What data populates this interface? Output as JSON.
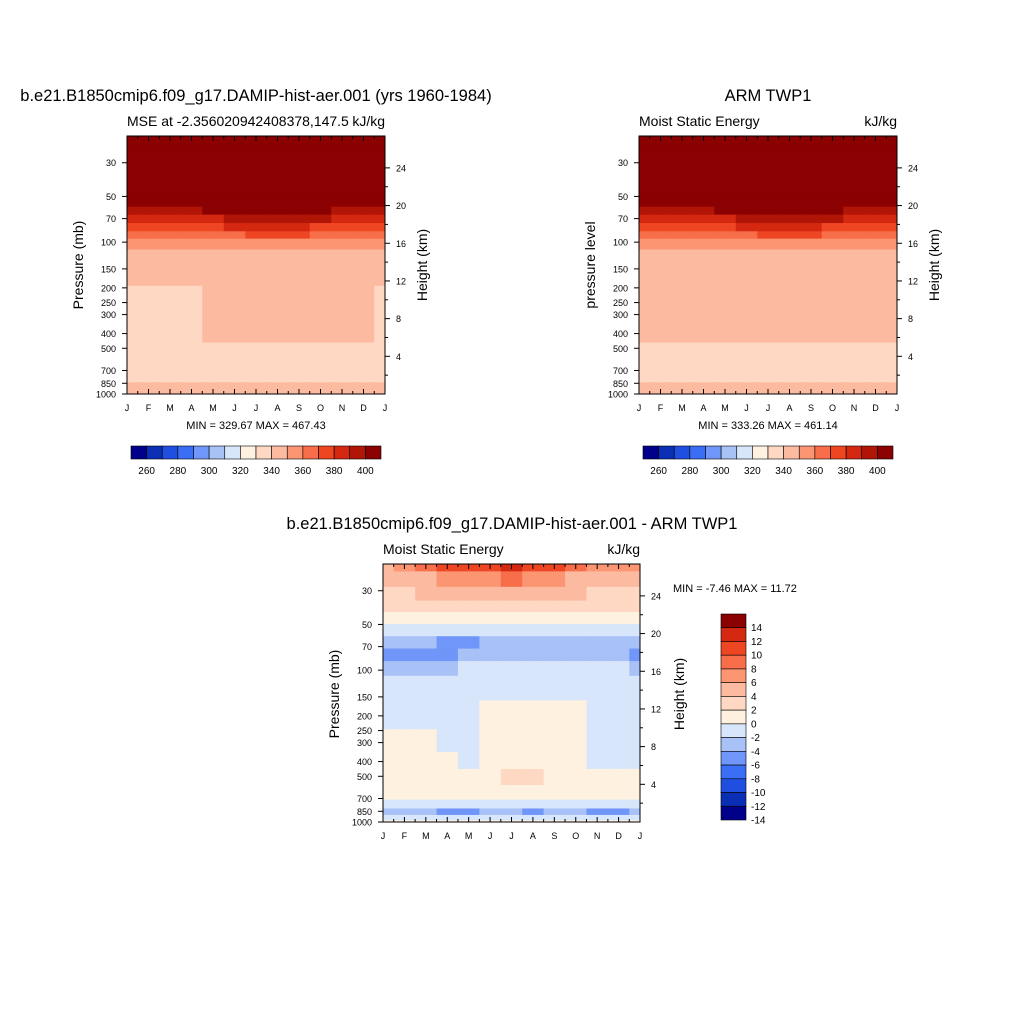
{
  "colors": {
    "abs_palette": [
      "#00008b",
      "#0a2fb4",
      "#1f4fe0",
      "#3a6ef5",
      "#6f96f8",
      "#a8c1f6",
      "#d7e6fa",
      "#fff1e0",
      "#fed8c2",
      "#fcbaa0",
      "#fb9572",
      "#f86e4a",
      "#ee4623",
      "#d42811",
      "#b11507",
      "#8b0000"
    ],
    "diff_palette": [
      "#00008b",
      "#0a2fb4",
      "#1f4fe0",
      "#3a6ef5",
      "#6f96f8",
      "#a8c1f6",
      "#d7e6fa",
      "#fff1e0",
      "#fed8c2",
      "#fcbaa0",
      "#fb9572",
      "#f86e4a",
      "#ee4623",
      "#d42811",
      "#8b0000"
    ]
  },
  "panels": {
    "model": {
      "main_title": "b.e21.B1850cmip6.f09_g17.DAMIP-hist-aer.001 (yrs 1960-1984)",
      "left_title": "MSE at -2.356020942408378,147.5",
      "right_title": "kJ/kg",
      "ylabel": "Pressure (mb)",
      "ylabel_right": "Height (km)",
      "minmax": "MIN = 329.67 MAX = 467.43"
    },
    "obs": {
      "main_title": "ARM TWP1",
      "left_title": "Moist Static Energy",
      "right_title": "kJ/kg",
      "ylabel": "pressure level",
      "ylabel_right": "Height (km)",
      "minmax": "MIN = 333.26 MAX = 461.14"
    },
    "diff": {
      "main_title": "b.e21.B1850cmip6.f09_g17.DAMIP-hist-aer.001 - ARM TWP1",
      "left_title": "Moist Static Energy",
      "right_title": "kJ/kg",
      "ylabel": "Pressure (mb)",
      "ylabel_right": "Height (km)",
      "minmax": "MIN =  -7.46 MAX =  11.72"
    }
  },
  "chart_data": [
    {
      "type": "heatmap",
      "title": "b.e21.B1850cmip6.f09_g17.DAMIP-hist-aer.001 (yrs 1960-1984)",
      "x_tick_labels": [
        "J",
        "F",
        "M",
        "A",
        "M",
        "J",
        "J",
        "A",
        "S",
        "O",
        "N",
        "D",
        "J"
      ],
      "pressure_ticks": [
        30,
        50,
        70,
        100,
        150,
        200,
        250,
        300,
        400,
        500,
        700,
        850,
        1000
      ],
      "height_ticks": [
        4,
        8,
        12,
        16,
        20,
        24
      ],
      "ylim": [
        1000,
        20
      ],
      "y_scale": "log",
      "pressure_levels": [
        20,
        30,
        45,
        55,
        62,
        70,
        80,
        90,
        100,
        125,
        300,
        700,
        1000
      ],
      "values": [
        [
          420,
          420,
          420,
          420,
          420,
          420,
          420,
          420,
          420,
          420,
          420,
          420,
          420
        ],
        [
          420,
          420,
          420,
          420,
          420,
          420,
          420,
          420,
          420,
          420,
          420,
          420,
          420
        ],
        [
          420,
          420,
          420,
          420,
          420,
          420,
          420,
          420,
          420,
          420,
          420,
          420,
          420
        ],
        [
          405,
          405,
          405,
          406,
          408,
          410,
          412,
          412,
          411,
          409,
          406,
          405,
          405
        ],
        [
          398,
          398,
          398,
          399,
          401,
          403,
          405,
          405,
          404,
          402,
          399,
          398,
          398
        ],
        [
          386,
          386,
          386,
          387,
          389,
          391,
          393,
          393,
          392,
          390,
          387,
          386,
          386
        ],
        [
          375,
          375,
          375,
          376,
          378,
          380,
          382,
          382,
          381,
          379,
          376,
          375,
          375
        ],
        [
          364,
          364,
          364,
          365,
          367,
          369,
          371,
          371,
          370,
          368,
          365,
          364,
          364
        ],
        [
          355,
          355,
          355,
          355,
          356,
          357,
          358,
          358,
          358,
          357,
          355,
          355,
          355
        ],
        [
          345,
          345,
          345,
          345,
          345,
          345,
          345,
          345,
          345,
          345,
          345,
          345,
          345
        ],
        [
          339,
          339,
          339,
          339,
          341,
          341,
          341,
          341,
          341,
          341,
          341,
          340,
          339
        ],
        [
          338,
          338,
          338,
          338,
          338,
          338,
          338,
          338,
          338,
          338,
          338,
          338,
          338
        ],
        [
          342,
          342,
          342,
          342,
          342,
          342,
          342,
          342,
          342,
          342,
          342,
          342,
          342
        ]
      ],
      "levels": [
        260,
        270,
        280,
        290,
        300,
        310,
        320,
        330,
        340,
        350,
        360,
        370,
        380,
        390,
        400
      ],
      "colorbar_labels": [
        "260",
        "280",
        "300",
        "320",
        "340",
        "360",
        "380",
        "400"
      ],
      "annotation": "MIN = 329.67 MAX = 467.43"
    },
    {
      "type": "heatmap",
      "title": "ARM TWP1",
      "x_tick_labels": [
        "J",
        "F",
        "M",
        "A",
        "M",
        "J",
        "J",
        "A",
        "S",
        "O",
        "N",
        "D",
        "J"
      ],
      "pressure_ticks": [
        30,
        50,
        70,
        100,
        150,
        200,
        250,
        300,
        400,
        500,
        700,
        850,
        1000
      ],
      "height_ticks": [
        4,
        8,
        12,
        16,
        20,
        24
      ],
      "ylim": [
        1000,
        20
      ],
      "y_scale": "log",
      "pressure_levels": [
        20,
        30,
        45,
        55,
        62,
        70,
        80,
        90,
        100,
        125,
        300,
        700,
        1000
      ],
      "values": [
        [
          420,
          420,
          420,
          420,
          420,
          420,
          420,
          420,
          420,
          420,
          420,
          420,
          420
        ],
        [
          420,
          420,
          420,
          420,
          420,
          420,
          420,
          420,
          420,
          420,
          420,
          420,
          420
        ],
        [
          420,
          420,
          420,
          420,
          420,
          420,
          420,
          420,
          420,
          420,
          420,
          420,
          420
        ],
        [
          405,
          405,
          405,
          406,
          408,
          410,
          412,
          412,
          411,
          409,
          406,
          405,
          405
        ],
        [
          398,
          398,
          398,
          399,
          401,
          403,
          405,
          405,
          404,
          402,
          399,
          398,
          398
        ],
        [
          386,
          386,
          386,
          387,
          389,
          391,
          393,
          393,
          392,
          390,
          387,
          386,
          386
        ],
        [
          375,
          375,
          375,
          376,
          378,
          380,
          382,
          382,
          381,
          379,
          376,
          375,
          375
        ],
        [
          364,
          364,
          364,
          365,
          367,
          369,
          371,
          371,
          370,
          368,
          365,
          364,
          364
        ],
        [
          355,
          355,
          355,
          355,
          356,
          357,
          358,
          358,
          358,
          357,
          355,
          355,
          355
        ],
        [
          345,
          345,
          345,
          345,
          345,
          345,
          345,
          345,
          345,
          345,
          345,
          345,
          345
        ],
        [
          345,
          345,
          345,
          345,
          343,
          343,
          342,
          341,
          342,
          343,
          344,
          345,
          345
        ],
        [
          338,
          338,
          338,
          338,
          338,
          338,
          338,
          338,
          338,
          338,
          338,
          338,
          338
        ],
        [
          345,
          345,
          342,
          342,
          345,
          342,
          342,
          342,
          342,
          342,
          345,
          345,
          345
        ]
      ],
      "levels": [
        260,
        270,
        280,
        290,
        300,
        310,
        320,
        330,
        340,
        350,
        360,
        370,
        380,
        390,
        400
      ],
      "colorbar_labels": [
        "260",
        "280",
        "300",
        "320",
        "340",
        "360",
        "380",
        "400"
      ],
      "annotation": "MIN = 333.26 MAX = 461.14"
    },
    {
      "type": "heatmap",
      "title": "b.e21.B1850cmip6.f09_g17.DAMIP-hist-aer.001 - ARM TWP1",
      "x_tick_labels": [
        "J",
        "F",
        "M",
        "A",
        "M",
        "J",
        "J",
        "A",
        "S",
        "O",
        "N",
        "D",
        "J"
      ],
      "pressure_ticks": [
        30,
        50,
        70,
        100,
        150,
        200,
        250,
        300,
        400,
        500,
        700,
        850,
        1000
      ],
      "height_ticks": [
        4,
        8,
        12,
        16,
        20,
        24
      ],
      "ylim": [
        1000,
        20
      ],
      "y_scale": "log",
      "pressure_levels": [
        20,
        25,
        32,
        38,
        45,
        55,
        65,
        80,
        95,
        125,
        200,
        300,
        400,
        500,
        650,
        780,
        850,
        950,
        1000
      ],
      "values": [
        [
          3,
          5,
          7,
          9,
          9,
          9,
          11,
          9,
          9,
          7,
          5,
          5,
          4
        ],
        [
          2,
          2,
          3,
          5,
          5,
          5,
          7,
          5,
          5,
          3,
          2,
          2,
          2
        ],
        [
          1,
          1,
          2,
          3,
          3,
          3,
          3,
          3,
          3,
          2,
          1,
          1,
          1
        ],
        [
          0.5,
          0.5,
          0.5,
          1,
          1,
          1,
          1,
          1,
          1,
          1,
          0.5,
          0.5,
          0.5
        ],
        [
          -1,
          -1,
          -1,
          -1,
          -1,
          -1,
          -1,
          -1,
          -1,
          -1,
          -1,
          -1,
          -1
        ],
        [
          -3,
          -3,
          -3,
          -3,
          -3,
          -3,
          -3,
          -3,
          -3,
          -3,
          -3,
          -3,
          -3
        ],
        [
          -5,
          -5,
          -5,
          -7,
          -7,
          -5,
          -5,
          -5,
          -5,
          -5,
          -5,
          -5,
          -5
        ],
        [
          -7,
          -7,
          -7,
          -7,
          -6,
          -5,
          -5,
          -5,
          -5,
          -5,
          -5,
          -5,
          -7
        ],
        [
          -5,
          -5,
          -5,
          -5,
          -4,
          -4,
          -4,
          -4,
          -4,
          -4,
          -4,
          -4,
          -5
        ],
        [
          -3,
          -3,
          -3,
          -3,
          -3,
          -3,
          -3,
          -3,
          -3,
          -3,
          -3,
          -3,
          -3
        ],
        [
          -3,
          -3,
          -3,
          -3,
          -3,
          -1,
          -1,
          -1,
          -1,
          -1,
          -3,
          -3,
          -3
        ],
        [
          -1,
          -1,
          -1,
          -3,
          -3,
          -1,
          -1,
          -1,
          -1,
          -1,
          -3,
          -3,
          -3
        ],
        [
          -1,
          -1,
          -1,
          -1,
          -3,
          -1,
          -1,
          -1,
          -1,
          -1,
          -3,
          -3,
          -3
        ],
        [
          -1,
          -1,
          -1,
          -1,
          -1,
          -1,
          0.5,
          1,
          -1,
          -1,
          -1,
          -1,
          -1
        ],
        [
          -1,
          -1,
          -1,
          -1,
          -1,
          -1,
          -1,
          -1,
          -1,
          -1,
          -1,
          -1,
          -1
        ],
        [
          -3,
          -3,
          -3,
          -3,
          -3,
          -3,
          -3,
          -3,
          -3,
          -3,
          -3,
          -3,
          -3
        ],
        [
          -5,
          -5,
          -5,
          -7,
          -7,
          -5,
          -5,
          -7,
          -5,
          -5,
          -7,
          -7,
          -5
        ],
        [
          -3,
          -3,
          -3,
          -3,
          -3,
          -3,
          -3,
          -3,
          -3,
          -3,
          -3,
          -3,
          -3
        ],
        [
          -1,
          -1,
          -1,
          -1,
          -1,
          -1,
          -1,
          -1,
          -1,
          -1,
          -1,
          -1,
          -1
        ]
      ],
      "levels": [
        -14,
        -12,
        -10,
        -8,
        -6,
        -4,
        -2,
        0,
        2,
        4,
        6,
        8,
        10,
        12,
        14
      ],
      "colorbar_labels": [
        "14",
        "12",
        "10",
        "8",
        "6",
        "4",
        "2",
        "0",
        "-2",
        "-4",
        "-6",
        "-8",
        "-10",
        "-12",
        "-14"
      ],
      "annotation": "MIN =  -7.46 MAX =  11.72"
    }
  ]
}
